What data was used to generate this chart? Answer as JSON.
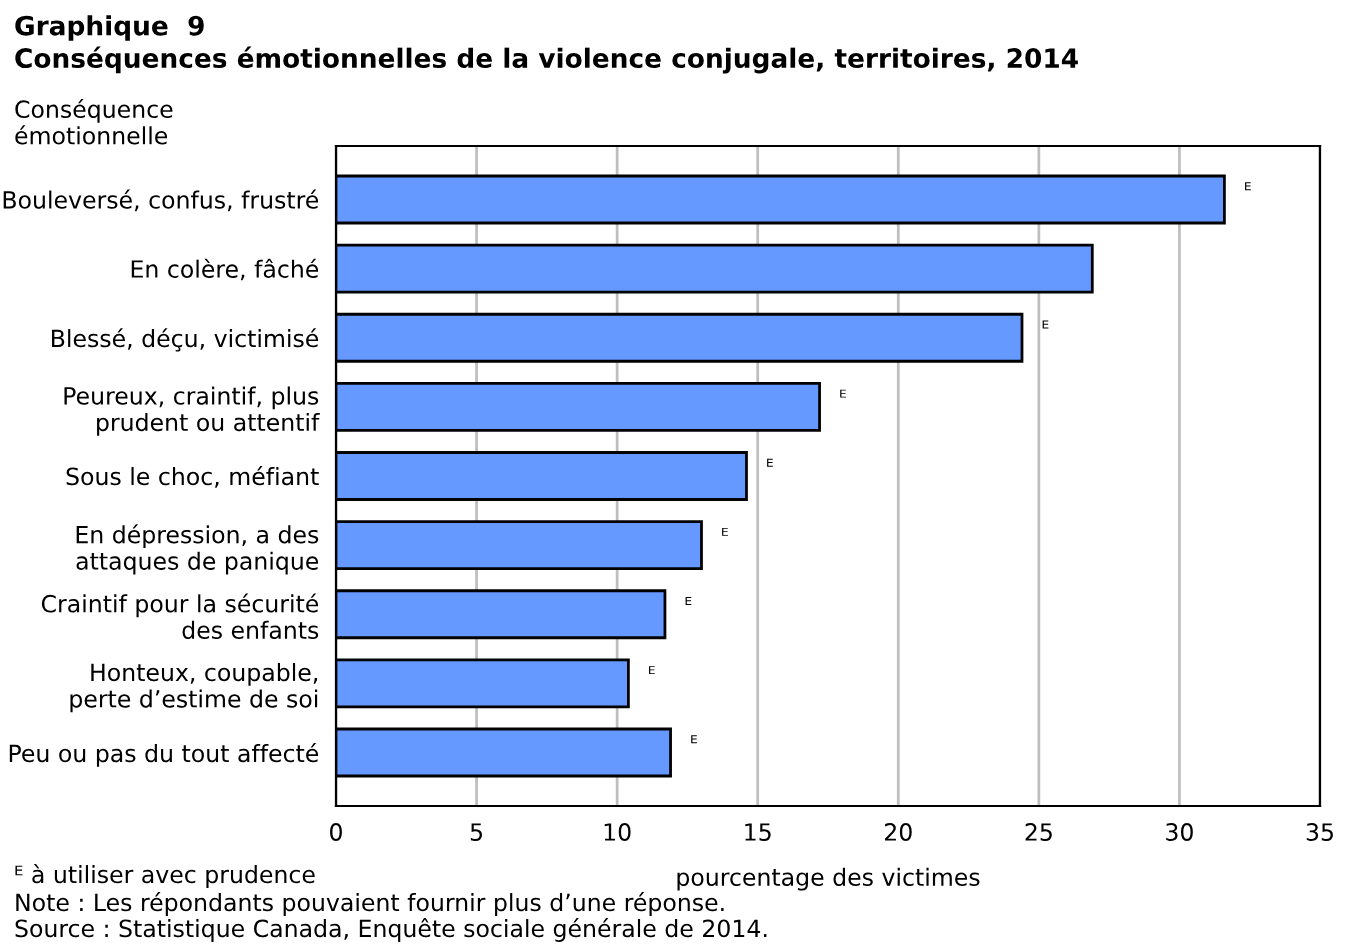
{
  "chart_data": {
    "type": "bar",
    "orientation": "horizontal",
    "title": "Graphique  9",
    "subtitle": "Conséquences émotionnelles de la violence conjugale, territoires, 2014",
    "ylabel": "Conséquence\némotionnelle",
    "xlabel": "pourcentage des victimes",
    "categories": [
      "Bouleversé, confus, frustré",
      "En colère, fâché",
      "Blessé, déçu, victimisé",
      "Peureux, craintif, plus\nprudent ou attentif",
      "Sous le choc, méfiant",
      "En dépression, a des\nattaques de panique",
      "Craintif pour la sécurité\ndes enfants",
      "Honteux, coupable,\nperte d’estime de soi",
      "Peu ou pas du tout affecté"
    ],
    "values": [
      31.6,
      26.9,
      24.4,
      17.2,
      14.6,
      13.0,
      11.7,
      10.4,
      11.9
    ],
    "value_labels": [
      "ᴱ",
      null,
      "ᴱ",
      "ᴱ",
      "ᴱ",
      "ᴱ",
      "ᴱ",
      "ᴱ",
      "ᴱ"
    ],
    "color": "#6699ff",
    "xlim": [
      0,
      35
    ],
    "xticks": [
      0,
      5,
      10,
      15,
      20,
      25,
      30,
      35
    ],
    "grid": "x",
    "annotations": [
      "ᴱ à utiliser avec prudence",
      "Note : Les répondants pouvaient fournir plus d’une réponse.",
      "Source : Statistique Canada, Enquête sociale générale de 2014."
    ]
  }
}
